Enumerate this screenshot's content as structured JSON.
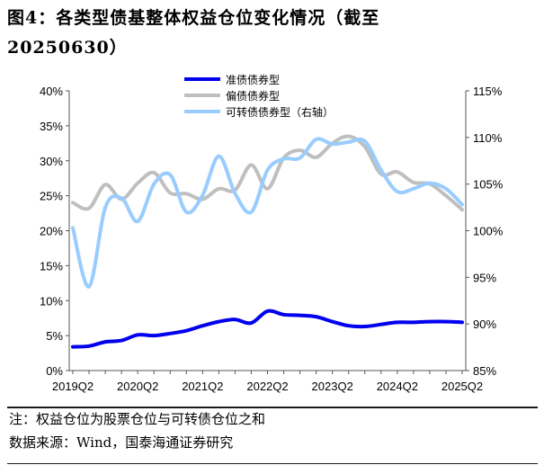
{
  "title": {
    "line1": "图4：各类型债基整体权益仓位变化情况（截至",
    "line2": "20250630）"
  },
  "notes": {
    "note": "注：权益仓位为股票仓位与可转债仓位之和",
    "source": "数据来源：Wind，国泰海通证券研究"
  },
  "colors": {
    "series1": "#0000ee",
    "series2": "#bfbfbf",
    "series3": "#99ccff"
  },
  "chart_data": {
    "type": "line",
    "x": [
      "2019Q2",
      "2019Q3",
      "2019Q4",
      "2020Q1",
      "2020Q2",
      "2020Q3",
      "2020Q4",
      "2021Q1",
      "2021Q2",
      "2021Q3",
      "2021Q4",
      "2022Q1",
      "2022Q2",
      "2022Q3",
      "2022Q4",
      "2023Q1",
      "2023Q2",
      "2023Q3",
      "2023Q4",
      "2024Q1",
      "2024Q2",
      "2024Q3",
      "2024Q4",
      "2025Q1",
      "2025Q2"
    ],
    "xticks": [
      "2019Q2",
      "2020Q2",
      "2021Q2",
      "2022Q2",
      "2023Q2",
      "2024Q2",
      "2025Q2"
    ],
    "left_axis": {
      "ylim": [
        0,
        40
      ],
      "ticks": [
        "0%",
        "5%",
        "10%",
        "15%",
        "20%",
        "25%",
        "30%",
        "35%",
        "40%"
      ]
    },
    "right_axis": {
      "ylim": [
        85,
        115
      ],
      "ticks": [
        "85%",
        "90%",
        "95%",
        "100%",
        "105%",
        "110%",
        "115%"
      ]
    },
    "series": [
      {
        "name": "准债债券型",
        "axis": "left",
        "values": [
          3.4,
          3.5,
          4.1,
          4.3,
          5.1,
          5.0,
          5.3,
          5.7,
          6.4,
          7.0,
          7.3,
          6.8,
          8.5,
          8.0,
          7.9,
          7.7,
          7.0,
          6.4,
          6.3,
          6.6,
          6.9,
          6.9,
          7.0,
          7.0,
          6.9
        ]
      },
      {
        "name": "偏债债券型",
        "axis": "left",
        "values": [
          24.0,
          23.2,
          26.6,
          24.5,
          26.8,
          28.3,
          25.4,
          25.3,
          24.5,
          26.0,
          25.8,
          29.4,
          26.0,
          30.4,
          31.5,
          30.5,
          32.5,
          33.5,
          32.0,
          28.1,
          28.4,
          26.9,
          26.7,
          25.0,
          23.0
        ]
      },
      {
        "name": "可转债债券型（右轴）",
        "axis": "right",
        "values": [
          100.3,
          94.0,
          102.5,
          103.5,
          101.0,
          105.0,
          106.0,
          102.0,
          103.8,
          108.0,
          104.0,
          102.0,
          106.5,
          107.7,
          107.8,
          109.8,
          109.3,
          109.5,
          109.6,
          106.5,
          104.2,
          104.5,
          105.1,
          104.5,
          102.8
        ]
      }
    ]
  }
}
